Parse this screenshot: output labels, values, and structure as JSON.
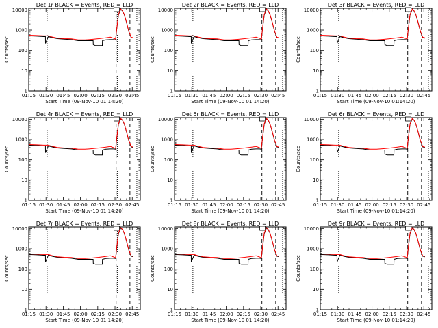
{
  "chart_data": [
    {
      "type": "line",
      "title": "Det 1r BLACK = Events, RED = LLD",
      "detector": "1r"
    },
    {
      "type": "line",
      "title": "Det 2r BLACK = Events, RED = LLD",
      "detector": "2r"
    },
    {
      "type": "line",
      "title": "Det 3r BLACK = Events, RED = LLD",
      "detector": "3r"
    },
    {
      "type": "line",
      "title": "Det 4r BLACK = Events, RED = LLD",
      "detector": "4r"
    },
    {
      "type": "line",
      "title": "Det 5r BLACK = Events, RED = LLD",
      "detector": "5r"
    },
    {
      "type": "line",
      "title": "Det 6r BLACK = Events, RED = LLD",
      "detector": "6r"
    },
    {
      "type": "line",
      "title": "Det 7r BLACK = Events, RED = LLD",
      "detector": "7r"
    },
    {
      "type": "line",
      "title": "Det 8r BLACK = Events, RED = LLD",
      "detector": "8r"
    },
    {
      "type": "line",
      "title": "Det 9r BLACK = Events, RED = LLD",
      "detector": "9r"
    }
  ],
  "shared": {
    "xlabel": "Start Time (09-Nov-10 01:14:20)",
    "ylabel": "Counts/sec",
    "x_tick_labels": [
      "01:15",
      "01:30",
      "01:45",
      "02:00",
      "02:15",
      "02:30",
      "02:45"
    ],
    "x_tick_minutes": [
      75,
      90,
      105,
      120,
      135,
      150,
      165
    ],
    "xlim_minutes": [
      75,
      172
    ],
    "y_tick_labels": [
      "1",
      "10",
      "100",
      "1000",
      "10000"
    ],
    "y_tick_values": [
      1,
      10,
      100,
      1000,
      10000
    ],
    "ylim": [
      1,
      12000
    ],
    "y_scale": "log",
    "colors": {
      "events": "#000000",
      "lld": "#ff0000"
    },
    "markers": {
      "dotted_minutes": [
        91,
        152,
        169
      ],
      "dashed_minutes": [
        151,
        163
      ]
    },
    "series_lld_minutes": [
      75,
      82,
      88,
      92,
      96,
      100,
      106,
      112,
      118,
      124,
      130,
      136,
      142,
      146,
      149,
      150.5,
      151.5,
      153,
      155,
      156.5,
      158,
      160,
      162,
      164,
      166
    ],
    "series_lld_values": [
      560,
      540,
      520,
      520,
      450,
      400,
      380,
      370,
      330,
      330,
      350,
      380,
      420,
      450,
      390,
      360,
      1200,
      6000,
      11000,
      9000,
      6000,
      2500,
      900,
      450,
      420
    ],
    "series_events_minutes": [
      75,
      82,
      88,
      89.5,
      89.6,
      92,
      96,
      100,
      106,
      112,
      118,
      124,
      131,
      131.1,
      133,
      139,
      139.1,
      142,
      146,
      149,
      150.5,
      151.5,
      153,
      155,
      156.5,
      158,
      160,
      162,
      164,
      166
    ],
    "series_events_values": [
      520,
      500,
      480,
      480,
      220,
      480,
      420,
      380,
      360,
      340,
      300,
      300,
      300,
      190,
      170,
      170,
      300,
      330,
      340,
      340,
      330,
      1100,
      5500,
      10500,
      8800,
      5800,
      2400,
      850,
      430,
      400
    ]
  }
}
